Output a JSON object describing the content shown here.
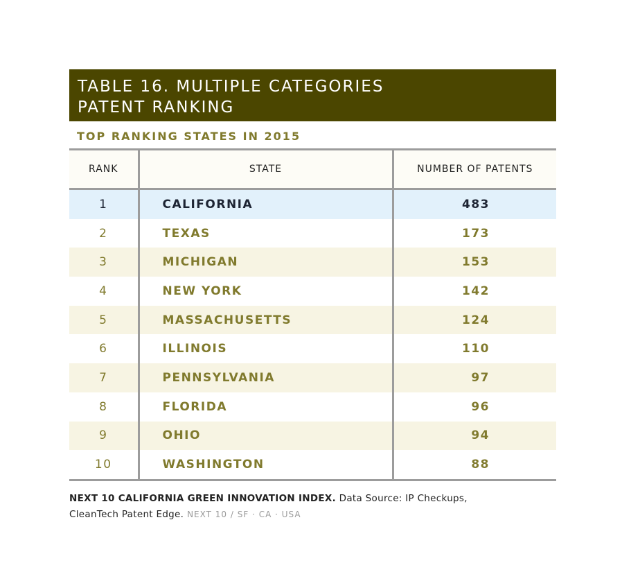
{
  "title_line1": "TABLE 16. MULTIPLE CATEGORIES",
  "title_line2": "PATENT RANKING",
  "subtitle": "TOP RANKING STATES IN 2015",
  "headers": {
    "rank": "RANK",
    "state": "STATE",
    "patents": "NUMBER OF PATENTS"
  },
  "rows": [
    {
      "rank": "1",
      "state": "CALIFORNIA",
      "patents": "483"
    },
    {
      "rank": "2",
      "state": "TEXAS",
      "patents": "173"
    },
    {
      "rank": "3",
      "state": "MICHIGAN",
      "patents": "153"
    },
    {
      "rank": "4",
      "state": "NEW YORK",
      "patents": "142"
    },
    {
      "rank": "5",
      "state": "MASSACHUSETTS",
      "patents": "124"
    },
    {
      "rank": "6",
      "state": "ILLINOIS",
      "patents": "110"
    },
    {
      "rank": "7",
      "state": "PENNSYLVANIA",
      "patents": "97"
    },
    {
      "rank": "8",
      "state": "FLORIDA",
      "patents": "96"
    },
    {
      "rank": "9",
      "state": "OHIO",
      "patents": "94"
    },
    {
      "rank": "10",
      "state": "WASHINGTON",
      "patents": "88"
    }
  ],
  "footer": {
    "source_bold": "NEXT 10 CALIFORNIA GREEN INNOVATION INDEX.",
    "source_text": " Data Source: IP Checkups,",
    "source_text2": "CleanTech Patent Edge.",
    "brand": " NEXT 10  /  SF · CA · USA"
  },
  "colors": {
    "title_bg": "#4b4600",
    "accent_text": "#807a2d",
    "highlight_row": "#e2f1fb",
    "alt_row": "#f7f4e3"
  }
}
